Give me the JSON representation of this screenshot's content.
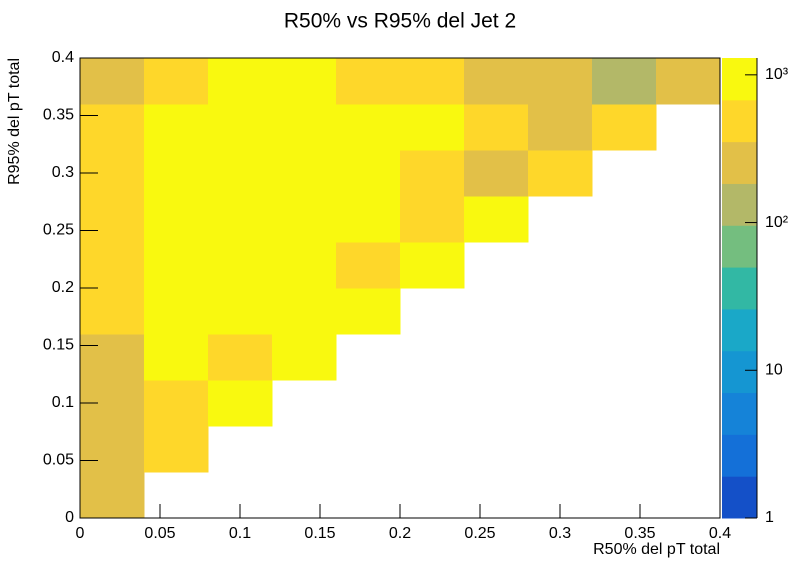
{
  "chart_data": {
    "type": "heatmap",
    "title": "R50% vs R95% del Jet 2",
    "x_label": "R50% del pT total",
    "y_label": "R95% del pT total",
    "x_bins": [
      0,
      0.04,
      0.08,
      0.12,
      0.16,
      0.2,
      0.24,
      0.28,
      0.32,
      0.36,
      0.4
    ],
    "y_bins": [
      0,
      0.04,
      0.08,
      0.12,
      0.16,
      0.2,
      0.24,
      0.28,
      0.32,
      0.36,
      0.4
    ],
    "values": [
      [
        220,
        null,
        null,
        null,
        null,
        null,
        null,
        null,
        null,
        null
      ],
      [
        220,
        450,
        null,
        null,
        null,
        null,
        null,
        null,
        null,
        null
      ],
      [
        220,
        450,
        1000,
        null,
        null,
        null,
        null,
        null,
        null,
        null
      ],
      [
        220,
        1000,
        450,
        1000,
        null,
        null,
        null,
        null,
        null,
        null
      ],
      [
        450,
        1000,
        1000,
        1000,
        1000,
        null,
        null,
        null,
        null,
        null
      ],
      [
        450,
        1000,
        1000,
        1000,
        450,
        1000,
        null,
        null,
        null,
        null
      ],
      [
        450,
        1000,
        1000,
        1000,
        1000,
        450,
        1000,
        null,
        null,
        null
      ],
      [
        450,
        1000,
        1000,
        1000,
        1000,
        450,
        220,
        450,
        null,
        null
      ],
      [
        450,
        1000,
        1000,
        1000,
        1000,
        1000,
        450,
        220,
        450,
        null
      ],
      [
        220,
        450,
        1000,
        1000,
        450,
        450,
        220,
        220,
        110,
        220
      ]
    ],
    "xlim": [
      0,
      0.4
    ],
    "ylim": [
      0,
      0.4
    ],
    "xticks": [
      0,
      0.05,
      0.1,
      0.15,
      0.2,
      0.25,
      0.3,
      0.35,
      0.4
    ],
    "yticks": [
      0,
      0.05,
      0.1,
      0.15,
      0.2,
      0.25,
      0.3,
      0.35,
      0.4
    ],
    "zlim": [
      1,
      1300
    ],
    "zscale": "log",
    "zticks": [
      1,
      10,
      {
        "value": 100,
        "label": "10²"
      },
      {
        "value": 1000,
        "label": "10³"
      }
    ],
    "palette": [
      "#1450c8",
      "#1470d8",
      "#1583d8",
      "#1596d2",
      "#1aa8c8",
      "#32b8a4",
      "#74be7f",
      "#b3b868",
      "#e2c048",
      "#fed72a",
      "#f9f90f"
    ]
  }
}
